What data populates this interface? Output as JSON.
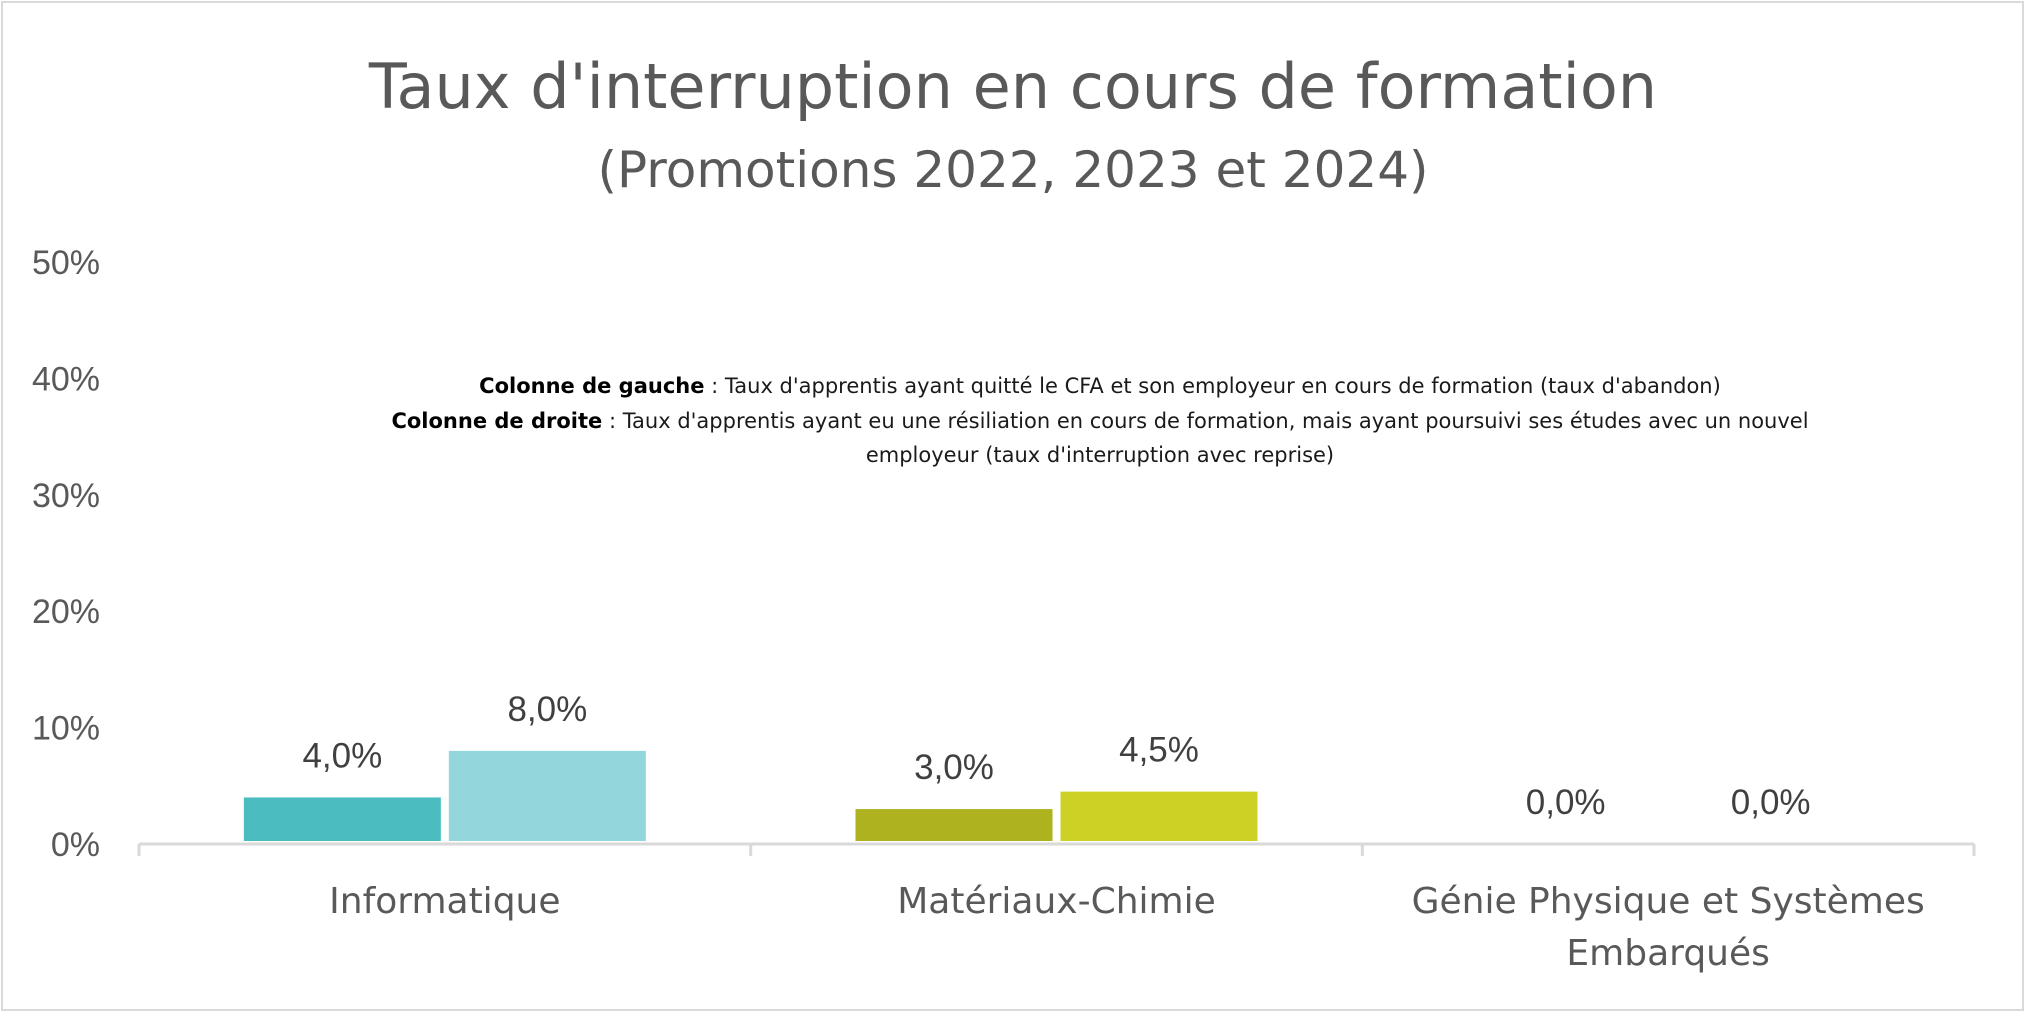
{
  "chart_data": {
    "type": "bar",
    "title": "Taux d'interruption en cours de formation",
    "subtitle": "(Promotions 2022, 2023 et 2024)",
    "categories": [
      {
        "lines": [
          "Informatique"
        ]
      },
      {
        "lines": [
          "Matériaux-Chimie"
        ]
      },
      {
        "lines": [
          "Génie Physique et Systèmes",
          "Embarqués"
        ]
      }
    ],
    "series": [
      {
        "name": "Colonne de gauche",
        "values": [
          4.0,
          3.0,
          0.0
        ],
        "labels": [
          "4,0%",
          "3,0%",
          "0,0%"
        ],
        "colors": [
          "#4bbcbf",
          "#aeb21e",
          "#8fa83a"
        ]
      },
      {
        "name": "Colonne de droite",
        "values": [
          8.0,
          4.5,
          0.0
        ],
        "labels": [
          "8,0%",
          "4,5%",
          "0,0%"
        ],
        "colors": [
          "#93d6db",
          "#cdd126",
          "#b7cf5a"
        ]
      }
    ],
    "ylim": [
      0,
      50
    ],
    "yticks": [
      0,
      10,
      20,
      30,
      40,
      50
    ],
    "ytick_labels": [
      "0%",
      "10%",
      "20%",
      "30%",
      "40%",
      "50%"
    ],
    "xlabel": "",
    "ylabel": "",
    "grid": false,
    "legend": "none",
    "annotation": {
      "left_bold": "Colonne de gauche",
      "left_text": " : Taux d'apprentis ayant quitté le CFA et son employeur en cours de formation (taux d'abandon)",
      "right_bold": "Colonne de droite",
      "right_text": " : Taux d'apprentis ayant eu une résiliation en cours de formation, mais ayant poursuivi ses études avec un nouvel",
      "right_text_2": "employeur (taux d'interruption avec reprise)"
    }
  }
}
